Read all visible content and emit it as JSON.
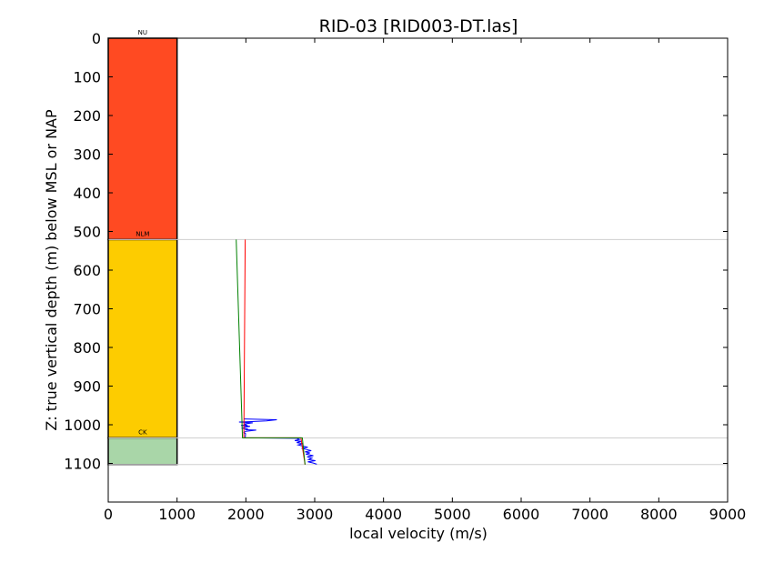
{
  "chart_data": {
    "type": "line",
    "title": "RID-03 [RID003-DT.las]",
    "xlabel": "local velocity (m/s)",
    "ylabel": "Z: true vertical depth (m) below MSL or NAP",
    "xlim": [
      0,
      9000
    ],
    "ylim": [
      1200,
      0
    ],
    "y_inverted": true,
    "grid": false,
    "x_ticks": [
      0,
      1000,
      2000,
      3000,
      4000,
      5000,
      6000,
      7000,
      8000,
      9000
    ],
    "y_ticks": [
      0,
      100,
      200,
      300,
      400,
      500,
      600,
      700,
      800,
      900,
      1000,
      1100
    ],
    "formations": [
      {
        "name": "NU",
        "top": 0,
        "base": 521,
        "width": 1000,
        "color": "#ff4a22"
      },
      {
        "name": "NLM",
        "top": 521,
        "base": 1034,
        "width": 1000,
        "color": "#fdcc00"
      },
      {
        "name": "CK",
        "top": 1034,
        "base": 1103,
        "width": 1000,
        "color": "#a9d6a8"
      }
    ],
    "boundary_lines": [
      521,
      1034,
      1103
    ],
    "series": [
      {
        "color": "#0000ff",
        "points": [
          [
            1970,
            985
          ],
          [
            2450,
            987
          ],
          [
            2300,
            990
          ],
          [
            2050,
            992
          ],
          [
            1900,
            993
          ],
          [
            2100,
            995
          ],
          [
            1980,
            998
          ],
          [
            2010,
            1001
          ],
          [
            1930,
            1002
          ],
          [
            2060,
            1004
          ],
          [
            1990,
            1006
          ],
          [
            1950,
            1009
          ],
          [
            2030,
            1011
          ],
          [
            1990,
            1013
          ],
          [
            2150,
            1014
          ],
          [
            2000,
            1017
          ],
          [
            1970,
            1020
          ],
          [
            1995,
            1023
          ],
          [
            1990,
            1034
          ],
          [
            2740,
            1035
          ],
          [
            2780,
            1038
          ],
          [
            2710,
            1041
          ],
          [
            2800,
            1043
          ],
          [
            2740,
            1046
          ],
          [
            2830,
            1049
          ],
          [
            2760,
            1052
          ],
          [
            2820,
            1055
          ],
          [
            2900,
            1058
          ],
          [
            2810,
            1061
          ],
          [
            2880,
            1064
          ],
          [
            2950,
            1067
          ],
          [
            2860,
            1070
          ],
          [
            2930,
            1073
          ],
          [
            2870,
            1076
          ],
          [
            2980,
            1080
          ],
          [
            2890,
            1083
          ],
          [
            2960,
            1086
          ],
          [
            2910,
            1090
          ],
          [
            3010,
            1093
          ],
          [
            2900,
            1096
          ],
          [
            2980,
            1099
          ],
          [
            3030,
            1102
          ]
        ]
      },
      {
        "color": "#ff0000",
        "points": [
          [
            1990,
            521
          ],
          [
            1970,
            1034
          ],
          [
            2800,
            1034
          ],
          [
            2860,
            1103
          ]
        ]
      },
      {
        "color": "#008000",
        "points": [
          [
            1860,
            521
          ],
          [
            1950,
            1034
          ],
          [
            2820,
            1034
          ],
          [
            2860,
            1103
          ]
        ]
      }
    ]
  }
}
